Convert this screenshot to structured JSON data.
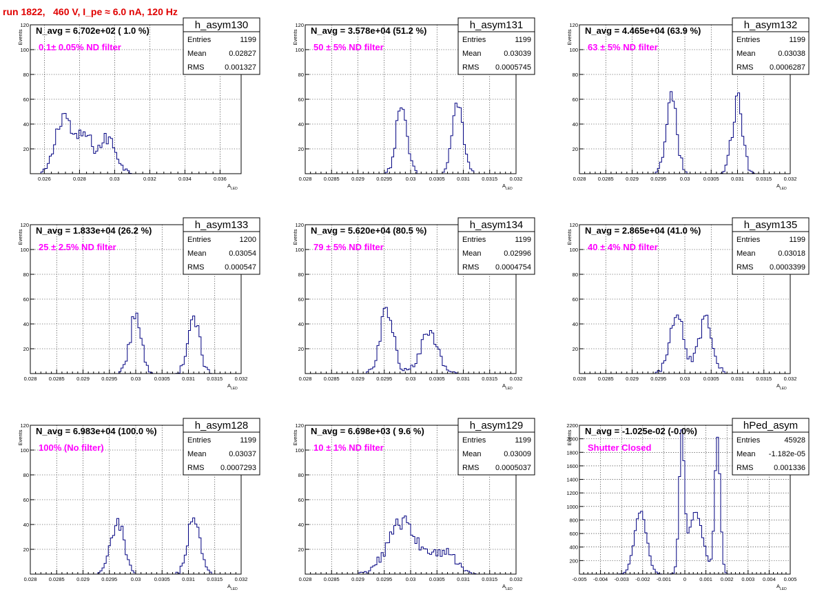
{
  "header": {
    "title": "run 1822,   460 V, I_pe ≈ 6.0 nA, 120 Hz"
  },
  "chart_data": [
    {
      "type": "histogram",
      "name": "h_asym130",
      "navg": "N_avg = 6.702e+02 ( 1.0 %)",
      "filter": "0.1± 0.05% ND filter",
      "stats": {
        "entries": "1199",
        "mean": "0.02827",
        "rms": "0.001327"
      },
      "xlim": [
        0.0252,
        0.0372
      ],
      "ylim": [
        0,
        120
      ],
      "xticks": [
        "0.026",
        "0.028",
        "0.03",
        "0.032",
        "0.034",
        "0.036"
      ],
      "xtick_values": [
        0.026,
        0.028,
        0.03,
        0.032,
        0.034,
        0.036
      ],
      "yticks": [
        "20",
        "40",
        "60",
        "80",
        "100",
        "120"
      ],
      "ytick_values": [
        20,
        40,
        60,
        80,
        100,
        120
      ],
      "xlabel": "A",
      "xlabel_sub": "LED",
      "ylabel": "Events",
      "peaks": [
        [
          0.0271,
          0.00045,
          48
        ],
        [
          0.0283,
          0.0004,
          30
        ],
        [
          0.0296,
          0.0005,
          28
        ]
      ]
    },
    {
      "type": "histogram",
      "name": "h_asym131",
      "navg": "N_avg = 3.578e+04 (51.2 %)",
      "filter": "50 ± 5% ND filter",
      "stats": {
        "entries": "1199",
        "mean": "0.03039",
        "rms": "0.0005745"
      },
      "xlim": [
        0.028,
        0.032
      ],
      "ylim": [
        0,
        120
      ],
      "xticks": [
        "0.028",
        "0.0285",
        "0.029",
        "0.0295",
        "0.03",
        "0.0305",
        "0.031",
        "0.0315",
        "0.032"
      ],
      "xtick_values": [
        0.028,
        0.0285,
        0.029,
        0.0295,
        0.03,
        0.0305,
        0.031,
        0.0315,
        0.032
      ],
      "yticks": [
        "20",
        "40",
        "60",
        "80",
        "100",
        "120"
      ],
      "ytick_values": [
        20,
        40,
        60,
        80,
        100,
        120
      ],
      "xlabel": "A",
      "xlabel_sub": "LED",
      "ylabel": "Events",
      "peaks": [
        [
          0.02983,
          0.0001,
          56
        ],
        [
          0.0309,
          0.0001,
          58
        ]
      ]
    },
    {
      "type": "histogram",
      "name": "h_asym132",
      "navg": "N_avg = 4.465e+04 (63.9 %)",
      "filter": "63 ± 5% ND filter",
      "stats": {
        "entries": "1199",
        "mean": "0.03038",
        "rms": "0.0006287"
      },
      "xlim": [
        0.028,
        0.032
      ],
      "ylim": [
        0,
        120
      ],
      "xticks": [
        "0.028",
        "0.0285",
        "0.029",
        "0.0295",
        "0.03",
        "0.0305",
        "0.031",
        "0.0315",
        "0.032"
      ],
      "xtick_values": [
        0.028,
        0.0285,
        0.029,
        0.0295,
        0.03,
        0.0305,
        0.031,
        0.0315,
        0.032
      ],
      "yticks": [
        "20",
        "40",
        "60",
        "80",
        "100",
        "120"
      ],
      "ytick_values": [
        20,
        40,
        60,
        80,
        100,
        120
      ],
      "xlabel": "A",
      "xlabel_sub": "LED",
      "ylabel": "Events",
      "peaks": [
        [
          0.02975,
          0.0001,
          60
        ],
        [
          0.031,
          0.0001,
          58
        ]
      ]
    },
    {
      "type": "histogram",
      "name": "h_asym133",
      "navg": "N_avg = 1.833e+04 (26.2 %)",
      "filter": "25 ± 2.5% ND filter",
      "stats": {
        "entries": "1200",
        "mean": "0.03054",
        "rms": "0.000547"
      },
      "xlim": [
        0.028,
        0.032
      ],
      "ylim": [
        0,
        120
      ],
      "xticks": [
        "0.028",
        "0.0285",
        "0.029",
        "0.0295",
        "0.03",
        "0.0305",
        "0.031",
        "0.0315",
        "0.032"
      ],
      "xtick_values": [
        0.028,
        0.0285,
        0.029,
        0.0295,
        0.03,
        0.0305,
        0.031,
        0.0315,
        0.032
      ],
      "yticks": [
        "20",
        "40",
        "60",
        "80",
        "100",
        "120"
      ],
      "ytick_values": [
        20,
        40,
        60,
        80,
        100,
        120
      ],
      "xlabel": "A",
      "xlabel_sub": "LED",
      "ylabel": "Events",
      "peaks": [
        [
          0.03,
          0.00011,
          46
        ],
        [
          0.0311,
          0.00011,
          46
        ]
      ]
    },
    {
      "type": "histogram",
      "name": "h_asym134",
      "navg": "N_avg = 5.620e+04 (80.5 %)",
      "filter": "79 ± 5% ND filter",
      "stats": {
        "entries": "1199",
        "mean": "0.02996",
        "rms": "0.0004754"
      },
      "xlim": [
        0.028,
        0.032
      ],
      "ylim": [
        0,
        120
      ],
      "xticks": [
        "0.028",
        "0.0285",
        "0.029",
        "0.0295",
        "0.03",
        "0.0305",
        "0.031",
        "0.0315",
        "0.032"
      ],
      "xtick_values": [
        0.028,
        0.0285,
        0.029,
        0.0295,
        0.03,
        0.0305,
        0.031,
        0.0315,
        0.032
      ],
      "yticks": [
        "20",
        "40",
        "60",
        "80",
        "100",
        "120"
      ],
      "ytick_values": [
        20,
        40,
        60,
        80,
        100,
        120
      ],
      "xlabel": "A",
      "xlabel_sub": "LED",
      "ylabel": "Events",
      "peaks": [
        [
          0.02955,
          0.00013,
          50
        ],
        [
          0.03035,
          0.00018,
          30
        ]
      ]
    },
    {
      "type": "histogram",
      "name": "h_asym135",
      "navg": "N_avg = 2.865e+04 (41.0 %)",
      "filter": "40 ± 4% ND filter",
      "stats": {
        "entries": "1199",
        "mean": "0.03018",
        "rms": "0.0003399"
      },
      "xlim": [
        0.028,
        0.032
      ],
      "ylim": [
        0,
        120
      ],
      "xticks": [
        "0.028",
        "0.0285",
        "0.029",
        "0.0295",
        "0.03",
        "0.0305",
        "0.031",
        "0.0315",
        "0.032"
      ],
      "xtick_values": [
        0.028,
        0.0285,
        0.029,
        0.0295,
        0.03,
        0.0305,
        0.031,
        0.0315,
        0.032
      ],
      "yticks": [
        "20",
        "40",
        "60",
        "80",
        "100",
        "120"
      ],
      "ytick_values": [
        20,
        40,
        60,
        80,
        100,
        120
      ],
      "xlabel": "A",
      "xlabel_sub": "LED",
      "ylabel": "Events",
      "peaks": [
        [
          0.02985,
          0.00013,
          52
        ],
        [
          0.0304,
          0.00013,
          46
        ]
      ]
    },
    {
      "type": "histogram",
      "name": "h_asym128",
      "navg": "N_avg = 6.983e+04 (100.0 %)",
      "filter": "100% (No filter)",
      "stats": {
        "entries": "1199",
        "mean": "0.03037",
        "rms": "0.0007293"
      },
      "xlim": [
        0.028,
        0.032
      ],
      "ylim": [
        0,
        120
      ],
      "xticks": [
        "0.028",
        "0.0285",
        "0.029",
        "0.0295",
        "0.03",
        "0.0305",
        "0.031",
        "0.0315",
        "0.032"
      ],
      "xtick_values": [
        0.028,
        0.0285,
        0.029,
        0.0295,
        0.03,
        0.0305,
        0.031,
        0.0315,
        0.032
      ],
      "yticks": [
        "20",
        "40",
        "60",
        "80",
        "100",
        "120"
      ],
      "ytick_values": [
        20,
        40,
        60,
        80,
        100,
        120
      ],
      "xlabel": "A",
      "xlabel_sub": "LED",
      "ylabel": "Events",
      "peaks": [
        [
          0.02965,
          0.00012,
          44
        ],
        [
          0.0311,
          0.00011,
          50
        ]
      ]
    },
    {
      "type": "histogram",
      "name": "h_asym129",
      "navg": "N_avg = 6.698e+03 ( 9.6 %)",
      "filter": "10 ± 1% ND filter",
      "stats": {
        "entries": "1199",
        "mean": "0.03009",
        "rms": "0.0005037"
      },
      "xlim": [
        0.028,
        0.032
      ],
      "ylim": [
        0,
        120
      ],
      "xticks": [
        "0.028",
        "0.0285",
        "0.029",
        "0.0295",
        "0.03",
        "0.0305",
        "0.031",
        "0.0315",
        "0.032"
      ],
      "xtick_values": [
        0.028,
        0.0285,
        0.029,
        0.0295,
        0.03,
        0.0305,
        0.031,
        0.0315,
        0.032
      ],
      "yticks": [
        "20",
        "40",
        "60",
        "80",
        "100",
        "120"
      ],
      "ytick_values": [
        20,
        40,
        60,
        80,
        100,
        120
      ],
      "xlabel": "A",
      "xlabel_sub": "LED",
      "ylabel": "Events",
      "peaks": [
        [
          0.02985,
          0.00028,
          42
        ],
        [
          0.03065,
          0.00022,
          18
        ]
      ]
    },
    {
      "type": "histogram",
      "name": "hPed_asym",
      "navg": "N_avg = -1.025e-02 (-0.0%)",
      "filter": "Shutter Closed",
      "stats": {
        "entries": "45928",
        "mean": "-1.182e-05",
        "rms": "0.001336"
      },
      "xlim": [
        -0.005,
        0.005
      ],
      "ylim": [
        0,
        2200
      ],
      "xticks": [
        "-0.005",
        "-0.004",
        "-0.003",
        "-0.002",
        "-0.001",
        "0",
        "0.001",
        "0.002",
        "0.003",
        "0.004",
        "0.005"
      ],
      "xtick_values": [
        -0.005,
        -0.004,
        -0.003,
        -0.002,
        -0.001,
        0,
        0.001,
        0.002,
        0.003,
        0.004,
        0.005
      ],
      "yticks": [
        "200",
        "400",
        "600",
        "800",
        "1000",
        "1200",
        "1400",
        "1600",
        "1800",
        "2000",
        "2200"
      ],
      "ytick_values": [
        200,
        400,
        600,
        800,
        1000,
        1200,
        1400,
        1600,
        1800,
        2000,
        2200
      ],
      "xlabel": "A",
      "xlabel_sub": "LED",
      "ylabel": "Events",
      "peaks": [
        [
          -0.0021,
          0.00028,
          950
        ],
        [
          -0.00015,
          0.00012,
          1950
        ],
        [
          0.0005,
          0.00035,
          900
        ],
        [
          0.00155,
          0.00013,
          2000
        ]
      ]
    }
  ],
  "stat_labels": {
    "entries": "Entries",
    "mean": "Mean",
    "rms": "RMS"
  }
}
